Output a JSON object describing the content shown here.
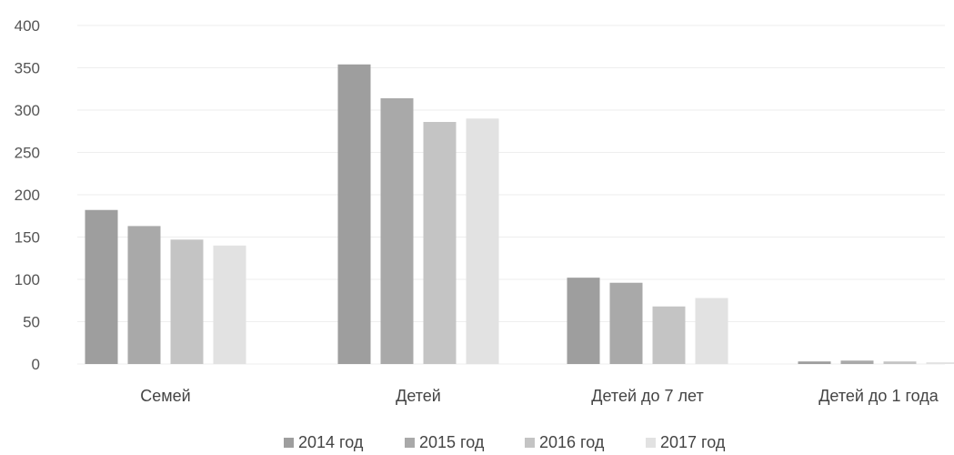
{
  "chart_data": {
    "type": "bar",
    "categories": [
      "Семей",
      "Детей",
      "Детей до 7 лет",
      "Детей до 1 года"
    ],
    "series": [
      {
        "name": "2014 год",
        "values": [
          182,
          354,
          102,
          3
        ],
        "color": "#9e9e9e"
      },
      {
        "name": "2015 год",
        "values": [
          163,
          314,
          96,
          4
        ],
        "color": "#a9a9a9"
      },
      {
        "name": "2016 год",
        "values": [
          147,
          286,
          68,
          3
        ],
        "color": "#c4c4c4"
      },
      {
        "name": "2017 год",
        "values": [
          140,
          290,
          78,
          2
        ],
        "color": "#e2e2e2"
      }
    ],
    "yticks": [
      "0",
      "50",
      "100",
      "150",
      "200",
      "250",
      "300",
      "350",
      "400"
    ],
    "ylim": [
      0,
      400
    ],
    "grid": true,
    "legend": "bottom"
  }
}
